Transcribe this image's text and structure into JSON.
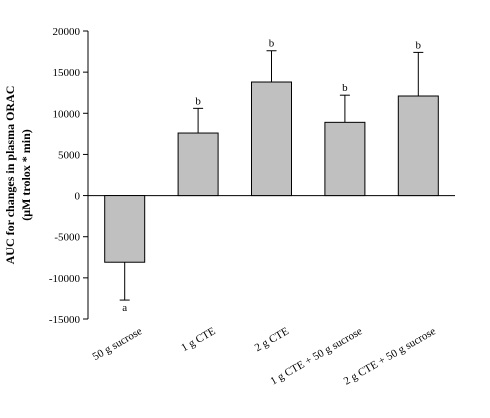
{
  "chart_data": {
    "type": "bar",
    "categories": [
      "50 g sucrose",
      "1 g CTE",
      "2 g CTE",
      "1 g CTE + 50 g sucrose",
      "2 g CTE + 50 g sucrose"
    ],
    "values": [
      -8100,
      7600,
      13800,
      8900,
      12100
    ],
    "error_bars": [
      4600,
      3000,
      3800,
      3300,
      5300
    ],
    "significance_letters": [
      "a",
      "b",
      "b",
      "b",
      "b"
    ],
    "ylabel_line1": "AUC for changes in plasma ORAC",
    "ylabel_line2": "(μM trolox * min)",
    "xlabel": "",
    "ylim": [
      -15000,
      20000
    ],
    "yticks": [
      -15000,
      -10000,
      -5000,
      0,
      5000,
      10000,
      15000,
      20000
    ],
    "ytick_labels": [
      "-15000",
      "-10000",
      "-5000",
      "0",
      "5000",
      "10000",
      "15000",
      "20000"
    ],
    "bar_color": "#c0c0c0",
    "bar_edge_color": "#000000",
    "grid": false,
    "legend": "none"
  }
}
